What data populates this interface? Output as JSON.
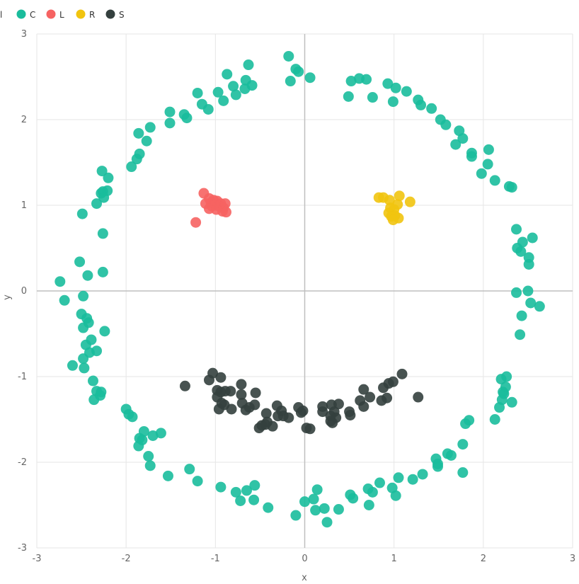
{
  "chart_data": {
    "type": "scatter",
    "xlabel": "x",
    "ylabel": "y",
    "xlim": [
      -3,
      3
    ],
    "ylim": [
      -3,
      3
    ],
    "x_ticks": [
      "-3",
      "-2",
      "-1",
      "0",
      "1",
      "2",
      "3"
    ],
    "y_ticks": [
      "3",
      "2",
      "1",
      "0",
      "-1",
      "-2",
      "-3"
    ],
    "grid": true,
    "legend_placement": "top-left",
    "legend_title": "l",
    "series": [
      {
        "name": "C",
        "color": "#1abc9c",
        "points": [
          [
            -0.18,
            2.74
          ],
          [
            -0.1,
            2.59
          ],
          [
            -0.07,
            2.56
          ],
          [
            -0.16,
            2.45
          ],
          [
            0.06,
            2.49
          ],
          [
            -0.63,
            2.64
          ],
          [
            -0.87,
            2.53
          ],
          [
            -0.66,
            2.46
          ],
          [
            -0.59,
            2.4
          ],
          [
            -0.8,
            2.39
          ],
          [
            -0.67,
            2.36
          ],
          [
            -0.97,
            2.32
          ],
          [
            -0.77,
            2.29
          ],
          [
            -0.91,
            2.22
          ],
          [
            -1.2,
            2.31
          ],
          [
            -1.15,
            2.18
          ],
          [
            -1.08,
            2.12
          ],
          [
            -1.35,
            2.06
          ],
          [
            -1.32,
            2.02
          ],
          [
            -1.51,
            2.09
          ],
          [
            -1.51,
            1.96
          ],
          [
            -1.73,
            1.91
          ],
          [
            -1.86,
            1.84
          ],
          [
            -1.77,
            1.75
          ],
          [
            -1.85,
            1.6
          ],
          [
            -1.88,
            1.54
          ],
          [
            -1.94,
            1.45
          ],
          [
            -2.27,
            1.4
          ],
          [
            -2.2,
            1.32
          ],
          [
            -2.21,
            1.17
          ],
          [
            -2.26,
            1.16
          ],
          [
            -2.28,
            1.14
          ],
          [
            -2.25,
            1.09
          ],
          [
            -2.33,
            1.02
          ],
          [
            -2.49,
            0.9
          ],
          [
            -2.26,
            0.67
          ],
          [
            -2.52,
            0.34
          ],
          [
            -2.26,
            0.22
          ],
          [
            -2.43,
            0.18
          ],
          [
            -2.74,
            0.11
          ],
          [
            -2.69,
            -0.11
          ],
          [
            -2.48,
            -0.06
          ],
          [
            -2.5,
            -0.27
          ],
          [
            -2.44,
            -0.32
          ],
          [
            -2.42,
            -0.37
          ],
          [
            -2.48,
            -0.43
          ],
          [
            -2.24,
            -0.47
          ],
          [
            -2.39,
            -0.57
          ],
          [
            -2.45,
            -0.63
          ],
          [
            -2.33,
            -0.7
          ],
          [
            -2.41,
            -0.72
          ],
          [
            -2.48,
            -0.79
          ],
          [
            -2.6,
            -0.87
          ],
          [
            -2.47,
            -0.9
          ],
          [
            -2.37,
            -1.05
          ],
          [
            -2.33,
            -1.17
          ],
          [
            -2.28,
            -1.18
          ],
          [
            -2.29,
            -1.22
          ],
          [
            -2.36,
            -1.27
          ],
          [
            -2.0,
            -1.38
          ],
          [
            -1.97,
            -1.44
          ],
          [
            -1.93,
            -1.47
          ],
          [
            -1.8,
            -1.64
          ],
          [
            -1.85,
            -1.72
          ],
          [
            -1.82,
            -1.74
          ],
          [
            -1.86,
            -1.81
          ],
          [
            -1.7,
            -1.69
          ],
          [
            -1.61,
            -1.66
          ],
          [
            -1.75,
            -1.93
          ],
          [
            -1.73,
            -2.04
          ],
          [
            -1.53,
            -2.16
          ],
          [
            -1.29,
            -2.08
          ],
          [
            -1.2,
            -2.22
          ],
          [
            -0.94,
            -2.29
          ],
          [
            -0.77,
            -2.35
          ],
          [
            -0.72,
            -2.45
          ],
          [
            -0.65,
            -2.33
          ],
          [
            -0.56,
            -2.27
          ],
          [
            -0.57,
            -2.44
          ],
          [
            -0.41,
            -2.53
          ],
          [
            -0.1,
            -2.62
          ],
          [
            0.0,
            -2.46
          ],
          [
            0.1,
            -2.43
          ],
          [
            0.14,
            -2.32
          ],
          [
            0.12,
            -2.56
          ],
          [
            0.22,
            -2.54
          ],
          [
            0.25,
            -2.7
          ],
          [
            0.38,
            -2.55
          ],
          [
            0.51,
            -2.38
          ],
          [
            0.54,
            -2.42
          ],
          [
            0.71,
            -2.31
          ],
          [
            0.76,
            -2.35
          ],
          [
            0.84,
            -2.24
          ],
          [
            0.72,
            -2.5
          ],
          [
            0.98,
            -2.3
          ],
          [
            1.02,
            -2.39
          ],
          [
            1.05,
            -2.18
          ],
          [
            1.21,
            -2.2
          ],
          [
            1.32,
            -2.14
          ],
          [
            1.47,
            -1.96
          ],
          [
            1.49,
            -2.02
          ],
          [
            1.49,
            -2.05
          ],
          [
            1.6,
            -1.9
          ],
          [
            1.64,
            -1.92
          ],
          [
            1.77,
            -1.79
          ],
          [
            1.8,
            -1.55
          ],
          [
            1.84,
            -1.51
          ],
          [
            1.77,
            -2.12
          ],
          [
            2.13,
            -1.5
          ],
          [
            2.18,
            -1.36
          ],
          [
            2.21,
            -1.27
          ],
          [
            2.23,
            -1.2
          ],
          [
            2.22,
            -1.18
          ],
          [
            2.25,
            -1.12
          ],
          [
            2.2,
            -1.03
          ],
          [
            2.26,
            -1.0
          ],
          [
            2.32,
            -1.3
          ],
          [
            2.37,
            0.72
          ],
          [
            2.44,
            0.57
          ],
          [
            2.38,
            0.5
          ],
          [
            2.42,
            0.46
          ],
          [
            2.55,
            0.62
          ],
          [
            2.51,
            0.39
          ],
          [
            2.51,
            0.31
          ],
          [
            2.37,
            -0.02
          ],
          [
            2.5,
            0.0
          ],
          [
            2.53,
            -0.14
          ],
          [
            2.63,
            -0.18
          ],
          [
            2.43,
            -0.29
          ],
          [
            2.41,
            -0.51
          ],
          [
            2.29,
            1.22
          ],
          [
            2.32,
            1.21
          ],
          [
            2.13,
            1.29
          ],
          [
            2.05,
            1.48
          ],
          [
            1.98,
            1.37
          ],
          [
            2.06,
            1.65
          ],
          [
            1.87,
            1.61
          ],
          [
            1.87,
            1.57
          ],
          [
            1.73,
            1.87
          ],
          [
            1.77,
            1.78
          ],
          [
            1.69,
            1.71
          ],
          [
            1.58,
            1.94
          ],
          [
            1.52,
            2.0
          ],
          [
            1.42,
            2.13
          ],
          [
            1.3,
            2.17
          ],
          [
            1.27,
            2.23
          ],
          [
            1.14,
            2.33
          ],
          [
            1.02,
            2.37
          ],
          [
            0.93,
            2.42
          ],
          [
            0.99,
            2.21
          ],
          [
            0.76,
            2.26
          ],
          [
            0.69,
            2.47
          ],
          [
            0.61,
            2.48
          ],
          [
            0.52,
            2.45
          ],
          [
            0.49,
            2.27
          ]
        ]
      },
      {
        "name": "L",
        "color": "#f66362",
        "points": [
          [
            -1.13,
            1.14
          ],
          [
            -1.07,
            1.08
          ],
          [
            -1.02,
            1.06
          ],
          [
            -0.98,
            1.05
          ],
          [
            -1.05,
            1.03
          ],
          [
            -1.11,
            1.02
          ],
          [
            -0.94,
            1.02
          ],
          [
            -0.89,
            1.02
          ],
          [
            -1.0,
            1.0
          ],
          [
            -1.04,
            0.99
          ],
          [
            -0.96,
            0.99
          ],
          [
            -0.91,
            0.97
          ],
          [
            -1.07,
            0.96
          ],
          [
            -0.99,
            0.95
          ],
          [
            -0.92,
            0.93
          ],
          [
            -0.88,
            0.92
          ],
          [
            -1.22,
            0.8
          ]
        ]
      },
      {
        "name": "R",
        "color": "#f1c40f",
        "points": [
          [
            0.83,
            1.09
          ],
          [
            0.88,
            1.09
          ],
          [
            1.06,
            1.11
          ],
          [
            0.95,
            1.06
          ],
          [
            1.18,
            1.04
          ],
          [
            1.04,
            1.01
          ],
          [
            0.96,
            0.97
          ],
          [
            1.0,
            0.95
          ],
          [
            0.94,
            0.91
          ],
          [
            1.01,
            0.88
          ],
          [
            0.97,
            0.87
          ],
          [
            1.05,
            0.85
          ],
          [
            0.99,
            0.83
          ]
        ]
      },
      {
        "name": "S",
        "color": "#34403e",
        "points": [
          [
            -1.34,
            -1.11
          ],
          [
            -1.03,
            -0.96
          ],
          [
            -0.94,
            -1.01
          ],
          [
            -1.07,
            -1.04
          ],
          [
            -0.98,
            -1.16
          ],
          [
            -0.94,
            -1.18
          ],
          [
            -0.89,
            -1.17
          ],
          [
            -0.83,
            -1.17
          ],
          [
            -0.98,
            -1.24
          ],
          [
            -0.93,
            -1.31
          ],
          [
            -0.71,
            -1.09
          ],
          [
            -0.71,
            -1.21
          ],
          [
            -0.55,
            -1.19
          ],
          [
            -0.9,
            -1.33
          ],
          [
            -0.96,
            -1.38
          ],
          [
            -0.82,
            -1.38
          ],
          [
            -0.7,
            -1.31
          ],
          [
            -0.66,
            -1.39
          ],
          [
            -0.56,
            -1.33
          ],
          [
            -0.62,
            -1.36
          ],
          [
            -0.43,
            -1.43
          ],
          [
            -0.31,
            -1.34
          ],
          [
            -0.26,
            -1.4
          ],
          [
            -0.24,
            -1.46
          ],
          [
            -0.3,
            -1.46
          ],
          [
            -0.18,
            -1.48
          ],
          [
            -0.42,
            -1.53
          ],
          [
            -0.44,
            -1.56
          ],
          [
            -0.48,
            -1.57
          ],
          [
            -0.36,
            -1.58
          ],
          [
            -0.51,
            -1.6
          ],
          [
            -0.07,
            -1.36
          ],
          [
            -0.02,
            -1.4
          ],
          [
            -0.04,
            -1.42
          ],
          [
            0.02,
            -1.6
          ],
          [
            0.06,
            -1.61
          ],
          [
            0.2,
            -1.35
          ],
          [
            0.2,
            -1.41
          ],
          [
            0.3,
            -1.33
          ],
          [
            0.33,
            -1.41
          ],
          [
            0.38,
            -1.32
          ],
          [
            0.29,
            -1.46
          ],
          [
            0.35,
            -1.48
          ],
          [
            0.29,
            -1.52
          ],
          [
            0.31,
            -1.54
          ],
          [
            0.5,
            -1.41
          ],
          [
            0.51,
            -1.45
          ],
          [
            0.62,
            -1.28
          ],
          [
            0.66,
            -1.35
          ],
          [
            0.66,
            -1.15
          ],
          [
            0.73,
            -1.24
          ],
          [
            0.86,
            -1.28
          ],
          [
            0.92,
            -1.25
          ],
          [
            0.88,
            -1.13
          ],
          [
            0.94,
            -1.08
          ],
          [
            0.99,
            -1.06
          ],
          [
            1.09,
            -0.97
          ],
          [
            1.27,
            -1.24
          ]
        ]
      }
    ]
  }
}
